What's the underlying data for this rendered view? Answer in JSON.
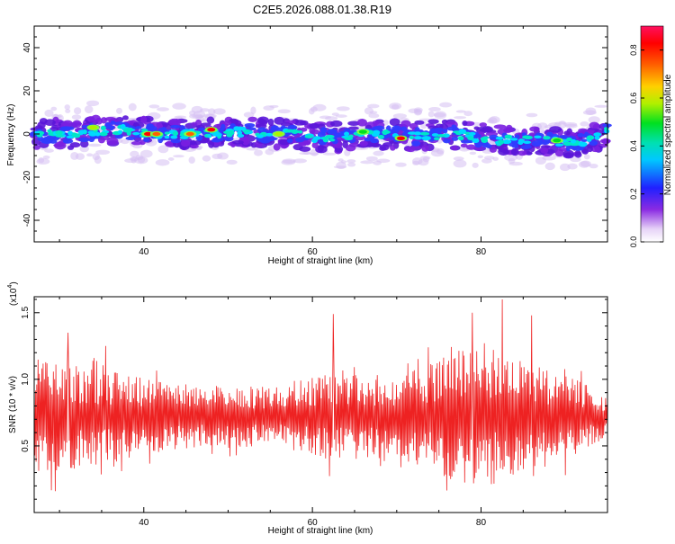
{
  "title": "C2E5.2026.088.01.38.R19",
  "colors": {
    "snr_line": "#ee2222",
    "axis": "#000000",
    "background": "#ffffff"
  },
  "chart_data": [
    {
      "type": "heatmap",
      "xlabel": "Height of straight line (km)",
      "ylabel": "Frequency (Hz)",
      "xlim": [
        27,
        95
      ],
      "ylim": [
        -50,
        50
      ],
      "xticks": [
        40,
        60,
        80
      ],
      "yticks": [
        -40,
        -20,
        0,
        20,
        40
      ],
      "xtick_labels": [
        "40",
        "60",
        "80"
      ],
      "ytick_labels": [
        "-40",
        "-20",
        "0",
        "20",
        "40"
      ],
      "colorbar": {
        "label": "Normalized spectral amplitude",
        "range": [
          0.0,
          0.9
        ],
        "ticks": [
          0.0,
          0.2,
          0.4,
          0.6,
          0.8
        ],
        "tick_labels": [
          "0.0",
          "0.2",
          "0.4",
          "0.6",
          "0.8"
        ]
      },
      "ridge": {
        "x": [
          27,
          32,
          37,
          42,
          47,
          52,
          57,
          62,
          67,
          72,
          77,
          82,
          87,
          92,
          95
        ],
        "y": [
          0,
          0,
          2,
          0,
          0,
          1,
          0,
          -2,
          0,
          -1,
          0,
          -3,
          -3,
          -4,
          1
        ]
      },
      "hot_spots": [
        {
          "x": 40.5,
          "y": 0,
          "value": 0.85
        },
        {
          "x": 41.5,
          "y": 0,
          "value": 0.8
        },
        {
          "x": 45.5,
          "y": 0,
          "value": 0.8
        },
        {
          "x": 48,
          "y": 2,
          "value": 0.85
        },
        {
          "x": 70.5,
          "y": -2,
          "value": 0.85
        },
        {
          "x": 34,
          "y": 3,
          "value": 0.6
        },
        {
          "x": 56,
          "y": 0,
          "value": 0.6
        },
        {
          "x": 66,
          "y": 1,
          "value": 0.55
        },
        {
          "x": 89,
          "y": -3,
          "value": 0.5
        }
      ]
    },
    {
      "type": "line",
      "xlabel": "Height of straight line (km)",
      "ylabel": "SNR (10 * v/v)",
      "scale_label": "(x10",
      "scale_exp": "4",
      "xlim": [
        27,
        95
      ],
      "ylim": [
        0,
        1.62
      ],
      "xticks": [
        40,
        60,
        80
      ],
      "yticks": [
        0.5,
        1.0,
        1.5
      ],
      "xtick_labels": [
        "40",
        "60",
        "80"
      ],
      "ytick_labels": [
        "0.5",
        "1.0",
        "1.5"
      ],
      "series_name": "SNR",
      "mean": 0.72,
      "amplitude_envelope": {
        "x": [
          27,
          35,
          45,
          55,
          62,
          70,
          78,
          84,
          90,
          95
        ],
        "amp": [
          0.55,
          0.45,
          0.3,
          0.28,
          0.42,
          0.38,
          0.65,
          0.55,
          0.4,
          0.2
        ]
      },
      "peaks": [
        {
          "x": 31,
          "y": 1.35
        },
        {
          "x": 35.5,
          "y": 1.25
        },
        {
          "x": 62.5,
          "y": 1.49
        },
        {
          "x": 79,
          "y": 1.5
        },
        {
          "x": 82.5,
          "y": 1.6
        },
        {
          "x": 86,
          "y": 1.48
        }
      ]
    }
  ]
}
